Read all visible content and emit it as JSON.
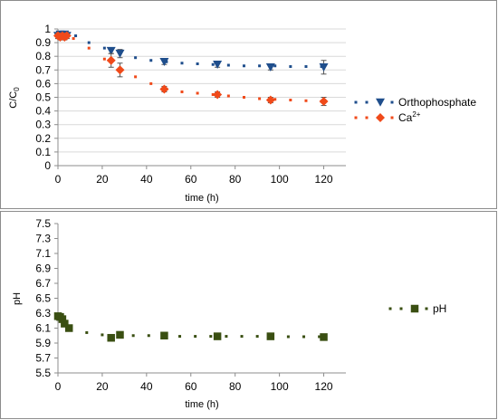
{
  "chart_data": [
    {
      "type": "scatter",
      "xlabel": "time (h)",
      "ylabel": "C/C",
      "ylabel_sub": "0",
      "xlim": [
        0,
        130
      ],
      "ylim": [
        0,
        1
      ],
      "xticks": [
        "0",
        "20",
        "40",
        "60",
        "80",
        "100",
        "120"
      ],
      "yticks": [
        "0",
        "0.1",
        "0.2",
        "0.3",
        "0.4",
        "0.5",
        "0.6",
        "0.7",
        "0.8",
        "0.9",
        "1"
      ],
      "grid": "horizontal",
      "legend_position": "right",
      "series": [
        {
          "name": "Orthophosphate",
          "color": "#1f4e8c",
          "marker": "triangle-down",
          "points": [
            {
              "x": 0,
              "y": 0.95,
              "err": 0.02
            },
            {
              "x": 1,
              "y": 0.96,
              "err": 0.02
            },
            {
              "x": 2,
              "y": 0.95,
              "err": 0.02
            },
            {
              "x": 3,
              "y": 0.96,
              "err": 0.02
            },
            {
              "x": 4,
              "y": 0.95,
              "err": 0.02
            },
            {
              "x": 24,
              "y": 0.84,
              "err": 0.02
            },
            {
              "x": 28,
              "y": 0.82,
              "err": 0.03
            },
            {
              "x": 48,
              "y": 0.76,
              "err": 0.02
            },
            {
              "x": 72,
              "y": 0.74,
              "err": 0.02
            },
            {
              "x": 96,
              "y": 0.72,
              "err": 0.02
            },
            {
              "x": 120,
              "y": 0.72,
              "err": 0.05
            }
          ],
          "fit": [
            {
              "x": 0,
              "y": 0.96
            },
            {
              "x": 8,
              "y": 0.95
            },
            {
              "x": 14,
              "y": 0.9
            },
            {
              "x": 21,
              "y": 0.86
            },
            {
              "x": 28,
              "y": 0.82
            },
            {
              "x": 35,
              "y": 0.79
            },
            {
              "x": 42,
              "y": 0.77
            },
            {
              "x": 49,
              "y": 0.76
            },
            {
              "x": 56,
              "y": 0.75
            },
            {
              "x": 63,
              "y": 0.745
            },
            {
              "x": 70,
              "y": 0.74
            },
            {
              "x": 77,
              "y": 0.735
            },
            {
              "x": 84,
              "y": 0.73
            },
            {
              "x": 91,
              "y": 0.73
            },
            {
              "x": 98,
              "y": 0.73
            },
            {
              "x": 105,
              "y": 0.725
            },
            {
              "x": 112,
              "y": 0.725
            },
            {
              "x": 119,
              "y": 0.725
            }
          ]
        },
        {
          "name": "Ca",
          "name_sup": "2+",
          "color": "#f04a1a",
          "marker": "diamond",
          "points": [
            {
              "x": 0,
              "y": 0.95,
              "err": 0.02
            },
            {
              "x": 1,
              "y": 0.94,
              "err": 0.02
            },
            {
              "x": 2,
              "y": 0.95,
              "err": 0.02
            },
            {
              "x": 3,
              "y": 0.94,
              "err": 0.02
            },
            {
              "x": 4,
              "y": 0.95,
              "err": 0.02
            },
            {
              "x": 24,
              "y": 0.77,
              "err": 0.05
            },
            {
              "x": 28,
              "y": 0.7,
              "err": 0.05
            },
            {
              "x": 48,
              "y": 0.56,
              "err": 0.02
            },
            {
              "x": 72,
              "y": 0.52,
              "err": 0.02
            },
            {
              "x": 96,
              "y": 0.48,
              "err": 0.02
            },
            {
              "x": 120,
              "y": 0.47,
              "err": 0.03
            }
          ],
          "fit": [
            {
              "x": 0,
              "y": 0.96
            },
            {
              "x": 7,
              "y": 0.93
            },
            {
              "x": 14,
              "y": 0.86
            },
            {
              "x": 21,
              "y": 0.78
            },
            {
              "x": 28,
              "y": 0.71
            },
            {
              "x": 35,
              "y": 0.65
            },
            {
              "x": 42,
              "y": 0.6
            },
            {
              "x": 49,
              "y": 0.56
            },
            {
              "x": 56,
              "y": 0.54
            },
            {
              "x": 63,
              "y": 0.53
            },
            {
              "x": 70,
              "y": 0.52
            },
            {
              "x": 77,
              "y": 0.51
            },
            {
              "x": 84,
              "y": 0.5
            },
            {
              "x": 91,
              "y": 0.49
            },
            {
              "x": 98,
              "y": 0.485
            },
            {
              "x": 105,
              "y": 0.48
            },
            {
              "x": 112,
              "y": 0.475
            },
            {
              "x": 119,
              "y": 0.47
            }
          ]
        }
      ]
    },
    {
      "type": "scatter",
      "xlabel": "time (h)",
      "ylabel": "pH",
      "xlim": [
        0,
        130
      ],
      "ylim": [
        5.5,
        7.5
      ],
      "xticks": [
        "0",
        "20",
        "40",
        "60",
        "80",
        "100",
        "120"
      ],
      "yticks": [
        "5.5",
        "5.7",
        "5.9",
        "6.1",
        "6.3",
        "6.5",
        "6.7",
        "6.9",
        "7.1",
        "7.3",
        "7.5"
      ],
      "grid": "none",
      "legend_position": "right",
      "series": [
        {
          "name": "pH",
          "color": "#3a4f12",
          "marker": "square",
          "points": [
            {
              "x": 0,
              "y": 6.26
            },
            {
              "x": 1,
              "y": 6.25
            },
            {
              "x": 2,
              "y": 6.22
            },
            {
              "x": 3,
              "y": 6.16
            },
            {
              "x": 5,
              "y": 6.1
            },
            {
              "x": 24,
              "y": 5.97
            },
            {
              "x": 28,
              "y": 6.01
            },
            {
              "x": 48,
              "y": 6.0
            },
            {
              "x": 72,
              "y": 5.99
            },
            {
              "x": 96,
              "y": 5.99
            },
            {
              "x": 120,
              "y": 5.98
            }
          ],
          "fit": [
            {
              "x": 0,
              "y": 6.27
            },
            {
              "x": 6,
              "y": 6.12
            },
            {
              "x": 13,
              "y": 6.04
            },
            {
              "x": 20,
              "y": 6.01
            },
            {
              "x": 27,
              "y": 6.0
            },
            {
              "x": 34,
              "y": 6.0
            },
            {
              "x": 41,
              "y": 6.0
            },
            {
              "x": 48,
              "y": 5.995
            },
            {
              "x": 55,
              "y": 5.99
            },
            {
              "x": 62,
              "y": 5.99
            },
            {
              "x": 69,
              "y": 5.99
            },
            {
              "x": 76,
              "y": 5.99
            },
            {
              "x": 83,
              "y": 5.99
            },
            {
              "x": 90,
              "y": 5.99
            },
            {
              "x": 97,
              "y": 5.985
            },
            {
              "x": 104,
              "y": 5.985
            },
            {
              "x": 111,
              "y": 5.985
            },
            {
              "x": 118,
              "y": 5.985
            }
          ]
        }
      ]
    }
  ]
}
